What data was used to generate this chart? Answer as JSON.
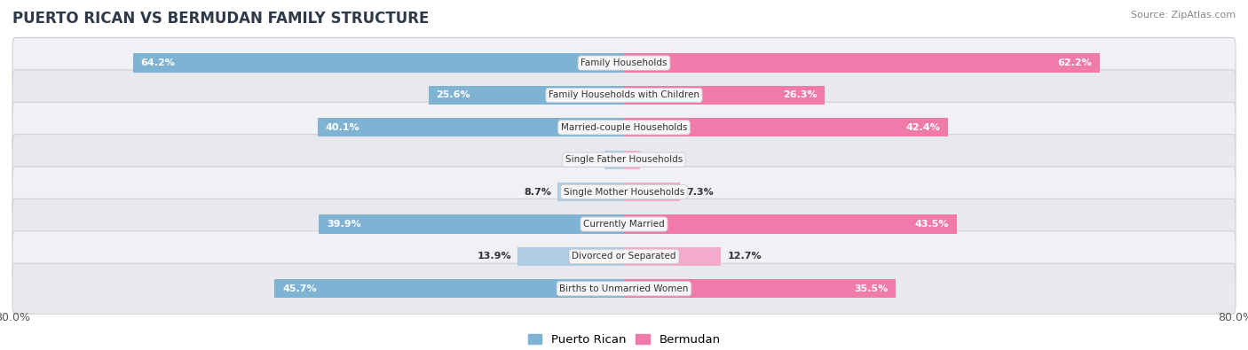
{
  "title": "PUERTO RICAN VS BERMUDAN FAMILY STRUCTURE",
  "source": "Source: ZipAtlas.com",
  "categories": [
    "Family Households",
    "Family Households with Children",
    "Married-couple Households",
    "Single Father Households",
    "Single Mother Households",
    "Currently Married",
    "Divorced or Separated",
    "Births to Unmarried Women"
  ],
  "puerto_rican": [
    64.2,
    25.6,
    40.1,
    2.6,
    8.7,
    39.9,
    13.9,
    45.7
  ],
  "bermudan": [
    62.2,
    26.3,
    42.4,
    2.1,
    7.3,
    43.5,
    12.7,
    35.5
  ],
  "max_val": 80.0,
  "color_pr": "#7fb3d3",
  "color_bm": "#f07aaa",
  "color_pr_light": "#aecde3",
  "color_bm_light": "#f5aacb",
  "bg_color": "#ffffff",
  "row_bg_odd": "#f0f0f5",
  "row_bg_even": "#e8e8ef",
  "label_bg": "#f5f5f8",
  "title_color": "#2e3a4a",
  "source_color": "#888888",
  "value_color_dark": "#333333",
  "legend_pr": "Puerto Rican",
  "legend_bm": "Bermudan"
}
